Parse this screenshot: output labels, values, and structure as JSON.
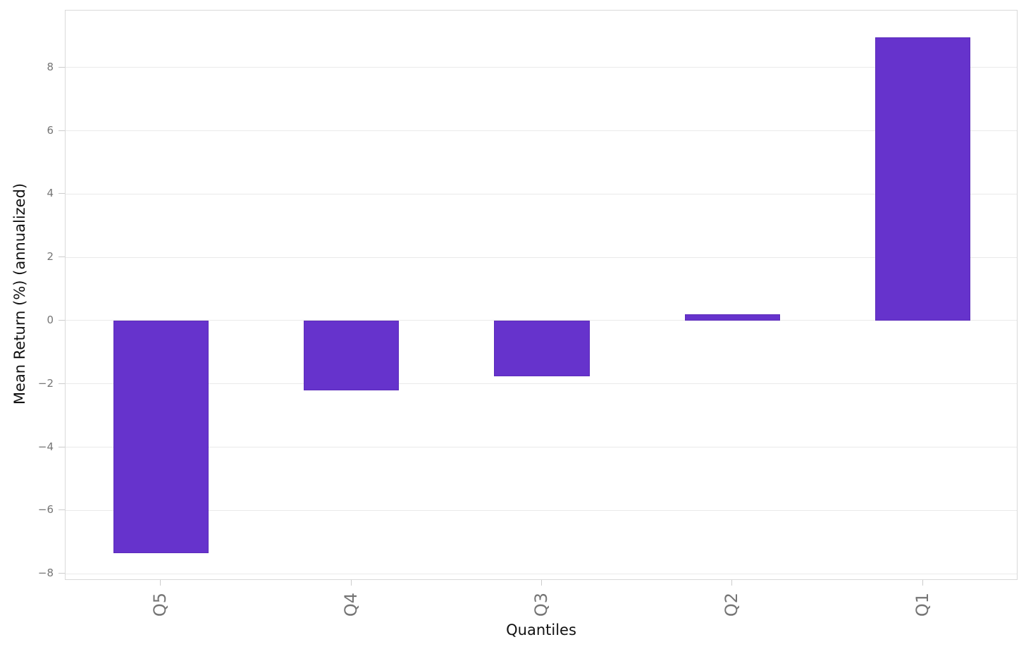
{
  "figure": {
    "background": "#ffffff"
  },
  "chart_data": {
    "type": "bar",
    "title": "",
    "xlabel": "Quantiles",
    "ylabel": "Mean Return (%) (annualized)",
    "categories": [
      "Q5",
      "Q4",
      "Q3",
      "Q2",
      "Q1"
    ],
    "values": [
      -7.35,
      -2.2,
      -1.75,
      0.2,
      8.95
    ],
    "ylim": [
      -8.22,
      9.8
    ],
    "yticks": [
      8,
      6,
      4,
      2,
      0,
      -2,
      -4,
      -6,
      -8
    ],
    "ytick_labels": [
      "8",
      "6",
      "4",
      "2",
      "0",
      "−2",
      "−4",
      "−6",
      "−8"
    ],
    "grid": "horizontal-only",
    "legend_position": "none",
    "colors": {
      "bar_fill": "#6633cc",
      "bar_edge": "#5c2cba",
      "gridline": "#eaeaea",
      "spine": "#d9d9d9",
      "tick": "#cccccc",
      "tick_label": "#757575",
      "axis_label": "#111111",
      "background": "#ffffff"
    }
  }
}
